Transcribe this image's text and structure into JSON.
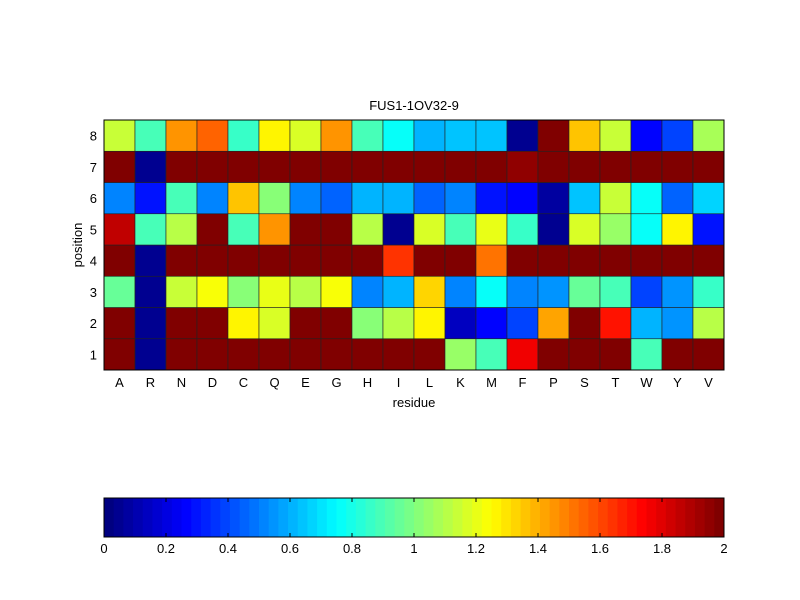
{
  "chart_data": {
    "type": "heatmap",
    "title": "FUS1-1OV32-9",
    "xlabel": "residue",
    "ylabel": "position",
    "x_categories": [
      "A",
      "R",
      "N",
      "D",
      "C",
      "Q",
      "E",
      "G",
      "H",
      "I",
      "L",
      "K",
      "M",
      "F",
      "P",
      "S",
      "T",
      "W",
      "Y",
      "V"
    ],
    "y_categories": [
      "1",
      "2",
      "3",
      "4",
      "5",
      "6",
      "7",
      "8"
    ],
    "z": [
      [
        2,
        0.05,
        2,
        2,
        2,
        2,
        2,
        2,
        2,
        2,
        2,
        1.05,
        0.9,
        1.75,
        2,
        2,
        2,
        0.88,
        2,
        2
      ],
      [
        2,
        0.05,
        2,
        2,
        1.25,
        1.18,
        2,
        2,
        1.0,
        1.12,
        1.25,
        0.15,
        0.25,
        0.38,
        1.42,
        2,
        1.7,
        0.6,
        0.55,
        1.12
      ],
      [
        0.95,
        0.05,
        1.15,
        1.22,
        1.02,
        1.2,
        1.1,
        1.22,
        0.5,
        0.62,
        1.32,
        0.5,
        0.75,
        0.5,
        0.55,
        0.95,
        0.88,
        0.4,
        0.55,
        0.85
      ],
      [
        2,
        0.05,
        2,
        2,
        2,
        2,
        2,
        2,
        2,
        1.65,
        2,
        2,
        1.5,
        2,
        2,
        2,
        2,
        2,
        2,
        2
      ],
      [
        1.85,
        0.9,
        1.1,
        2,
        0.88,
        1.45,
        2,
        2,
        1.12,
        0.05,
        1.18,
        0.9,
        1.2,
        0.85,
        0.05,
        1.18,
        1.05,
        0.76,
        1.25,
        0.3
      ],
      [
        0.5,
        0.3,
        0.9,
        0.5,
        1.35,
        1.0,
        0.5,
        0.45,
        0.62,
        0.62,
        0.45,
        0.5,
        0.3,
        0.27,
        0.08,
        0.65,
        1.15,
        0.75,
        0.45,
        0.68
      ],
      [
        2,
        0.05,
        2,
        2,
        2,
        2,
        2,
        2,
        2,
        2,
        2,
        2,
        2,
        1.95,
        2,
        2,
        2,
        2,
        2,
        2
      ],
      [
        1.15,
        0.9,
        1.45,
        1.55,
        0.85,
        1.25,
        1.18,
        1.45,
        0.9,
        0.76,
        0.6,
        0.65,
        0.65,
        0.05,
        2,
        1.35,
        1.15,
        0.25,
        0.4,
        1.08
      ]
    ],
    "colormap": "jet",
    "clim": [
      0,
      2
    ],
    "colorbar": {
      "placement": "bottom",
      "ticks": [
        "0",
        "0.2",
        "0.4",
        "0.6",
        "0.8",
        "1",
        "1.2",
        "1.4",
        "1.6",
        "1.8",
        "2"
      ],
      "tick_values": [
        0,
        0.2,
        0.4,
        0.6,
        0.8,
        1,
        1.2,
        1.4,
        1.6,
        1.8,
        2
      ]
    }
  }
}
